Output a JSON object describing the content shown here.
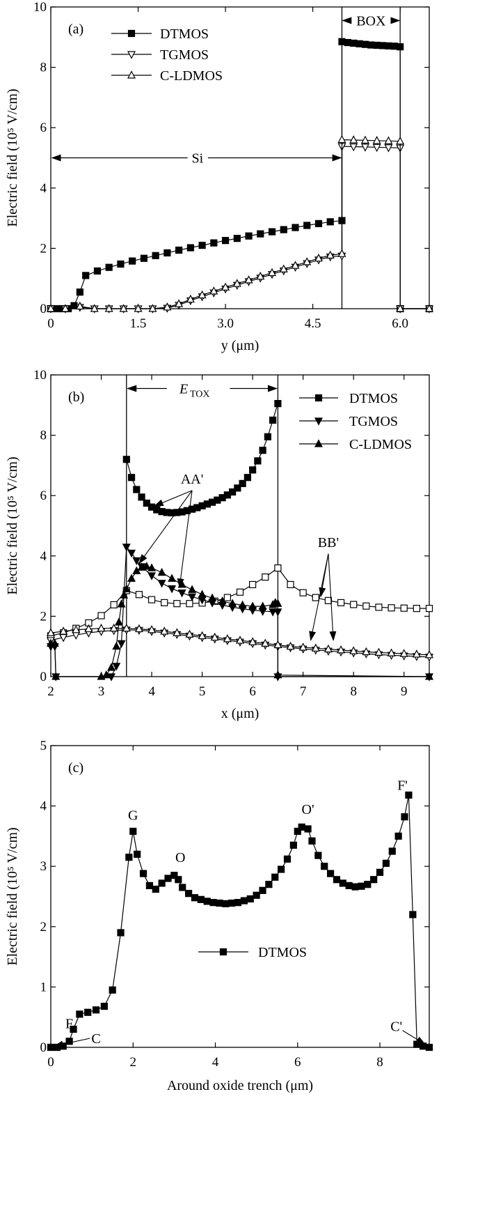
{
  "chart_data": [
    {
      "type": "line",
      "panel_label": "(a)",
      "xlabel": "y  (μm)",
      "ylabel": "Electric field (10⁵ V/cm)",
      "xlim": [
        0,
        6.5
      ],
      "ylim": [
        0,
        10
      ],
      "xticks": [
        0,
        1.5,
        3.0,
        4.5,
        6.0
      ],
      "xtick_labels": [
        "0",
        "1.5",
        "3.0",
        "4.5",
        "6.0"
      ],
      "yticks": [
        0,
        2,
        4,
        6,
        8,
        10
      ],
      "ytick_labels": [
        "0",
        "2",
        "4",
        "6",
        "8",
        "10"
      ],
      "legend_position": "top-left",
      "annotations": [
        {
          "text": "Si",
          "kind": "double-arrow",
          "x_from": 0,
          "x_to": 5.0,
          "y": 5.0
        },
        {
          "text": "BOX",
          "kind": "double-arrow",
          "x_from": 5.0,
          "x_to": 6.0,
          "y": 9.6
        }
      ],
      "vlines": [
        5.0,
        6.0
      ],
      "series": [
        {
          "name": "DTMOS",
          "marker": "square-filled",
          "x": [
            0,
            0.1,
            0.2,
            0.3,
            0.4,
            0.5,
            0.6,
            0.8,
            1.0,
            1.2,
            1.4,
            1.6,
            1.8,
            2.0,
            2.2,
            2.4,
            2.6,
            2.8,
            3.0,
            3.2,
            3.4,
            3.6,
            3.8,
            4.0,
            4.2,
            4.4,
            4.6,
            4.8,
            5.0,
            5.0,
            5.1,
            5.2,
            5.3,
            5.4,
            5.5,
            5.6,
            5.7,
            5.8,
            5.9,
            6.0,
            6.0,
            6.5
          ],
          "y": [
            0,
            0,
            0,
            0,
            0.1,
            0.55,
            1.1,
            1.25,
            1.37,
            1.48,
            1.58,
            1.67,
            1.76,
            1.85,
            1.94,
            2.02,
            2.1,
            2.18,
            2.26,
            2.33,
            2.41,
            2.48,
            2.55,
            2.62,
            2.69,
            2.76,
            2.82,
            2.88,
            2.92,
            8.85,
            8.82,
            8.8,
            8.78,
            8.76,
            8.74,
            8.73,
            8.72,
            8.71,
            8.7,
            8.68,
            0,
            0
          ]
        },
        {
          "name": "TGMOS",
          "marker": "triangle-down-open",
          "x": [
            0,
            0.25,
            0.5,
            0.75,
            1.0,
            1.25,
            1.5,
            1.75,
            2.0,
            2.2,
            2.4,
            2.6,
            2.8,
            3.0,
            3.2,
            3.4,
            3.6,
            3.8,
            4.0,
            4.2,
            4.4,
            4.6,
            4.8,
            5.0,
            5.0,
            5.2,
            5.4,
            5.6,
            5.8,
            6.0,
            6.0,
            6.5
          ],
          "y": [
            0,
            0,
            0.05,
            0,
            0,
            0,
            0,
            0,
            0.02,
            0.12,
            0.27,
            0.4,
            0.53,
            0.66,
            0.78,
            0.9,
            1.02,
            1.14,
            1.26,
            1.38,
            1.5,
            1.62,
            1.72,
            1.75,
            5.38,
            5.37,
            5.36,
            5.35,
            5.34,
            5.33,
            0,
            0
          ]
        },
        {
          "name": "C-LDMOS",
          "marker": "triangle-up-open",
          "x": [
            0,
            0.25,
            0.5,
            0.75,
            1.0,
            1.25,
            1.5,
            1.75,
            2.0,
            2.2,
            2.4,
            2.6,
            2.8,
            3.0,
            3.2,
            3.4,
            3.6,
            3.8,
            4.0,
            4.2,
            4.4,
            4.6,
            4.8,
            5.0,
            5.0,
            5.2,
            5.4,
            5.6,
            5.8,
            6.0,
            6.0,
            6.5
          ],
          "y": [
            0,
            0,
            0.08,
            0,
            0,
            0,
            0,
            0,
            0.05,
            0.16,
            0.31,
            0.45,
            0.58,
            0.71,
            0.83,
            0.95,
            1.07,
            1.19,
            1.31,
            1.43,
            1.55,
            1.67,
            1.77,
            1.82,
            5.6,
            5.59,
            5.58,
            5.57,
            5.56,
            5.55,
            0,
            0
          ]
        }
      ]
    },
    {
      "type": "line",
      "panel_label": "(b)",
      "xlabel": "x  (μm)",
      "ylabel": "Electric field (10⁵ V/cm)",
      "xlim": [
        2,
        9.5
      ],
      "ylim": [
        0,
        10
      ],
      "xticks": [
        2,
        3,
        4,
        5,
        6,
        7,
        8,
        9
      ],
      "xtick_labels": [
        "2",
        "3",
        "4",
        "5",
        "6",
        "7",
        "8",
        "9"
      ],
      "yticks": [
        0,
        2,
        4,
        6,
        8,
        10
      ],
      "ytick_labels": [
        "0",
        "2",
        "4",
        "6",
        "8",
        "10"
      ],
      "legend_position": "top-right",
      "annotations": [
        {
          "text": "E",
          "subscript": "TOX",
          "kind": "double-arrow",
          "x_from": 3.5,
          "x_to": 6.5,
          "y": 9.6
        },
        {
          "text": "AA'",
          "kind": "label",
          "x": 4.8,
          "y": 6.4
        },
        {
          "text": "BB'",
          "kind": "label",
          "x": 7.5,
          "y": 4.3
        }
      ],
      "vlines": [
        3.5,
        6.5
      ],
      "series": [
        {
          "name": "DTMOS",
          "marker": "square-filled",
          "segment": "AA'",
          "x": [
            3.5,
            3.6,
            3.7,
            3.8,
            3.9,
            4.0,
            4.1,
            4.2,
            4.3,
            4.4,
            4.5,
            4.6,
            4.7,
            4.8,
            4.9,
            5.0,
            5.1,
            5.2,
            5.3,
            5.4,
            5.5,
            5.6,
            5.7,
            5.8,
            5.9,
            6.0,
            6.1,
            6.2,
            6.3,
            6.4,
            6.5
          ],
          "y": [
            7.2,
            6.6,
            6.2,
            5.95,
            5.75,
            5.62,
            5.53,
            5.47,
            5.44,
            5.43,
            5.44,
            5.46,
            5.5,
            5.55,
            5.6,
            5.66,
            5.72,
            5.78,
            5.85,
            5.93,
            6.02,
            6.12,
            6.25,
            6.4,
            6.6,
            6.85,
            7.15,
            7.5,
            7.95,
            8.5,
            9.05
          ]
        },
        {
          "name": "DTMOS",
          "marker": "square-open",
          "segment": "BB'",
          "x": [
            2.0,
            2.25,
            2.5,
            2.75,
            3.0,
            3.25,
            3.5,
            3.75,
            4.0,
            4.25,
            4.5,
            4.75,
            5.0,
            5.25,
            5.5,
            5.75,
            6.0,
            6.25,
            6.5,
            6.75,
            7.0,
            7.25,
            7.5,
            7.75,
            8.0,
            8.25,
            8.5,
            8.75,
            9.0,
            9.25,
            9.5
          ],
          "y": [
            1.35,
            1.45,
            1.6,
            1.78,
            2.02,
            2.38,
            2.85,
            2.72,
            2.55,
            2.45,
            2.42,
            2.42,
            2.44,
            2.5,
            2.62,
            2.8,
            3.05,
            3.3,
            3.6,
            3.05,
            2.78,
            2.62,
            2.52,
            2.45,
            2.39,
            2.34,
            2.3,
            2.28,
            2.27,
            2.26,
            2.26
          ]
        },
        {
          "name": "TGMOS",
          "marker": "triangle-down-filled",
          "segment": "AA'",
          "x": [
            2.0,
            2.08,
            2.1,
            3.2,
            3.3,
            3.4,
            3.5,
            3.6,
            3.7,
            3.8,
            4.0,
            4.2,
            4.4,
            4.6,
            4.8,
            5.0,
            5.2,
            5.4,
            5.6,
            5.8,
            6.0,
            6.2,
            6.4,
            6.5,
            6.5,
            9.5
          ],
          "y": [
            1.0,
            1.0,
            0,
            0,
            0.35,
            1.1,
            4.3,
            4.1,
            3.85,
            3.65,
            3.35,
            3.1,
            2.92,
            2.78,
            2.65,
            2.55,
            2.45,
            2.37,
            2.3,
            2.25,
            2.2,
            2.17,
            2.15,
            2.15,
            0,
            0
          ]
        },
        {
          "name": "TGMOS",
          "marker": "triangle-down-open",
          "segment": "BB'",
          "x": [
            2.0,
            2.25,
            2.5,
            2.75,
            3.0,
            3.25,
            3.5,
            3.75,
            4.0,
            4.25,
            4.5,
            4.75,
            5.0,
            5.25,
            5.5,
            5.75,
            6.0,
            6.25,
            6.5,
            6.75,
            7.0,
            7.25,
            7.5,
            7.75,
            8.0,
            8.25,
            8.5,
            8.75,
            9.0,
            9.25,
            9.5
          ],
          "y": [
            1.2,
            1.3,
            1.38,
            1.45,
            1.5,
            1.53,
            1.55,
            1.54,
            1.5,
            1.45,
            1.4,
            1.35,
            1.3,
            1.25,
            1.2,
            1.15,
            1.1,
            1.05,
            1.0,
            0.96,
            0.92,
            0.88,
            0.85,
            0.82,
            0.79,
            0.76,
            0.73,
            0.71,
            0.69,
            0.67,
            0.65
          ]
        },
        {
          "name": "C-LDMOS",
          "marker": "triangle-up-filled",
          "segment": "AA'",
          "x": [
            2.0,
            2.08,
            2.1,
            3.0,
            3.1,
            3.2,
            3.3,
            3.35,
            3.4,
            3.45,
            3.5,
            3.6,
            3.7,
            3.8,
            3.9,
            4.0,
            4.2,
            4.4,
            4.6,
            4.8,
            5.0,
            5.2,
            5.4,
            5.6,
            5.8,
            6.0,
            6.2,
            6.4,
            6.45,
            6.5,
            6.5,
            9.5
          ],
          "y": [
            1.1,
            1.1,
            0,
            0,
            0.05,
            0.3,
            1.0,
            1.8,
            2.4,
            2.7,
            2.9,
            3.25,
            3.5,
            3.62,
            3.65,
            3.6,
            3.45,
            3.25,
            3.05,
            2.88,
            2.72,
            2.6,
            2.5,
            2.42,
            2.37,
            2.33,
            2.33,
            2.38,
            2.45,
            2.42,
            0.05,
            0
          ]
        },
        {
          "name": "C-LDMOS",
          "marker": "triangle-up-open",
          "segment": "BB'",
          "x": [
            2.0,
            2.25,
            2.5,
            2.75,
            3.0,
            3.25,
            3.5,
            3.75,
            4.0,
            4.25,
            4.5,
            4.75,
            5.0,
            5.25,
            5.5,
            5.75,
            6.0,
            6.25,
            6.5,
            6.75,
            7.0,
            7.25,
            7.5,
            7.75,
            8.0,
            8.25,
            8.5,
            8.75,
            9.0,
            9.25,
            9.5
          ],
          "y": [
            1.45,
            1.5,
            1.55,
            1.58,
            1.6,
            1.6,
            1.6,
            1.58,
            1.55,
            1.5,
            1.45,
            1.4,
            1.35,
            1.3,
            1.25,
            1.2,
            1.15,
            1.1,
            1.05,
            1.0,
            0.97,
            0.94,
            0.91,
            0.88,
            0.85,
            0.82,
            0.8,
            0.78,
            0.76,
            0.74,
            0.72
          ]
        }
      ]
    },
    {
      "type": "line",
      "panel_label": "(c)",
      "xlabel": "Around oxide trench (μm)",
      "ylabel": "Electric field (10⁵ V/cm)",
      "xlim": [
        0,
        9.2
      ],
      "ylim": [
        0,
        5
      ],
      "xticks": [
        0,
        2,
        4,
        6,
        8
      ],
      "xtick_labels": [
        "0",
        "2",
        "4",
        "6",
        "8"
      ],
      "yticks": [
        0,
        1,
        2,
        3,
        4,
        5
      ],
      "ytick_labels": [
        "0",
        "1",
        "2",
        "3",
        "4",
        "5"
      ],
      "legend_position": "center",
      "annotations": [
        {
          "text": "F",
          "kind": "label",
          "x": 0.45,
          "y": 0.4
        },
        {
          "text": "C",
          "kind": "arrow-label",
          "x": 1.1,
          "y": 0.15
        },
        {
          "text": "G",
          "kind": "label",
          "x": 2.0,
          "y": 3.85
        },
        {
          "text": "O",
          "kind": "label",
          "x": 3.15,
          "y": 3.15
        },
        {
          "text": "O'",
          "kind": "label",
          "x": 6.25,
          "y": 3.95
        },
        {
          "text": "F'",
          "kind": "label",
          "x": 8.55,
          "y": 4.35
        },
        {
          "text": "C'",
          "kind": "arrow-label",
          "x": 8.4,
          "y": 0.35
        }
      ],
      "series": [
        {
          "name": "DTMOS",
          "marker": "square-filled",
          "x": [
            0,
            0.15,
            0.3,
            0.45,
            0.55,
            0.7,
            0.9,
            1.1,
            1.3,
            1.5,
            1.7,
            1.9,
            2.0,
            2.1,
            2.25,
            2.4,
            2.55,
            2.7,
            2.85,
            3.0,
            3.1,
            3.2,
            3.35,
            3.5,
            3.65,
            3.8,
            3.95,
            4.1,
            4.25,
            4.4,
            4.55,
            4.7,
            4.85,
            5.0,
            5.15,
            5.3,
            5.45,
            5.6,
            5.75,
            5.9,
            6.0,
            6.1,
            6.25,
            6.35,
            6.5,
            6.65,
            6.8,
            6.95,
            7.1,
            7.25,
            7.4,
            7.55,
            7.7,
            7.85,
            8.0,
            8.15,
            8.3,
            8.45,
            8.6,
            8.7,
            8.8,
            8.9,
            9.05,
            9.2
          ],
          "y": [
            0,
            0.0,
            0.02,
            0.1,
            0.3,
            0.55,
            0.58,
            0.62,
            0.68,
            0.95,
            1.9,
            3.15,
            3.58,
            3.2,
            2.88,
            2.68,
            2.62,
            2.72,
            2.8,
            2.85,
            2.78,
            2.65,
            2.55,
            2.48,
            2.45,
            2.42,
            2.4,
            2.39,
            2.38,
            2.39,
            2.4,
            2.43,
            2.46,
            2.52,
            2.6,
            2.7,
            2.82,
            2.95,
            3.12,
            3.35,
            3.58,
            3.65,
            3.62,
            3.42,
            3.18,
            3.0,
            2.88,
            2.78,
            2.72,
            2.68,
            2.66,
            2.67,
            2.7,
            2.78,
            2.9,
            3.05,
            3.25,
            3.5,
            3.82,
            4.18,
            2.2,
            0.05,
            0.02,
            0.0
          ]
        }
      ]
    }
  ]
}
